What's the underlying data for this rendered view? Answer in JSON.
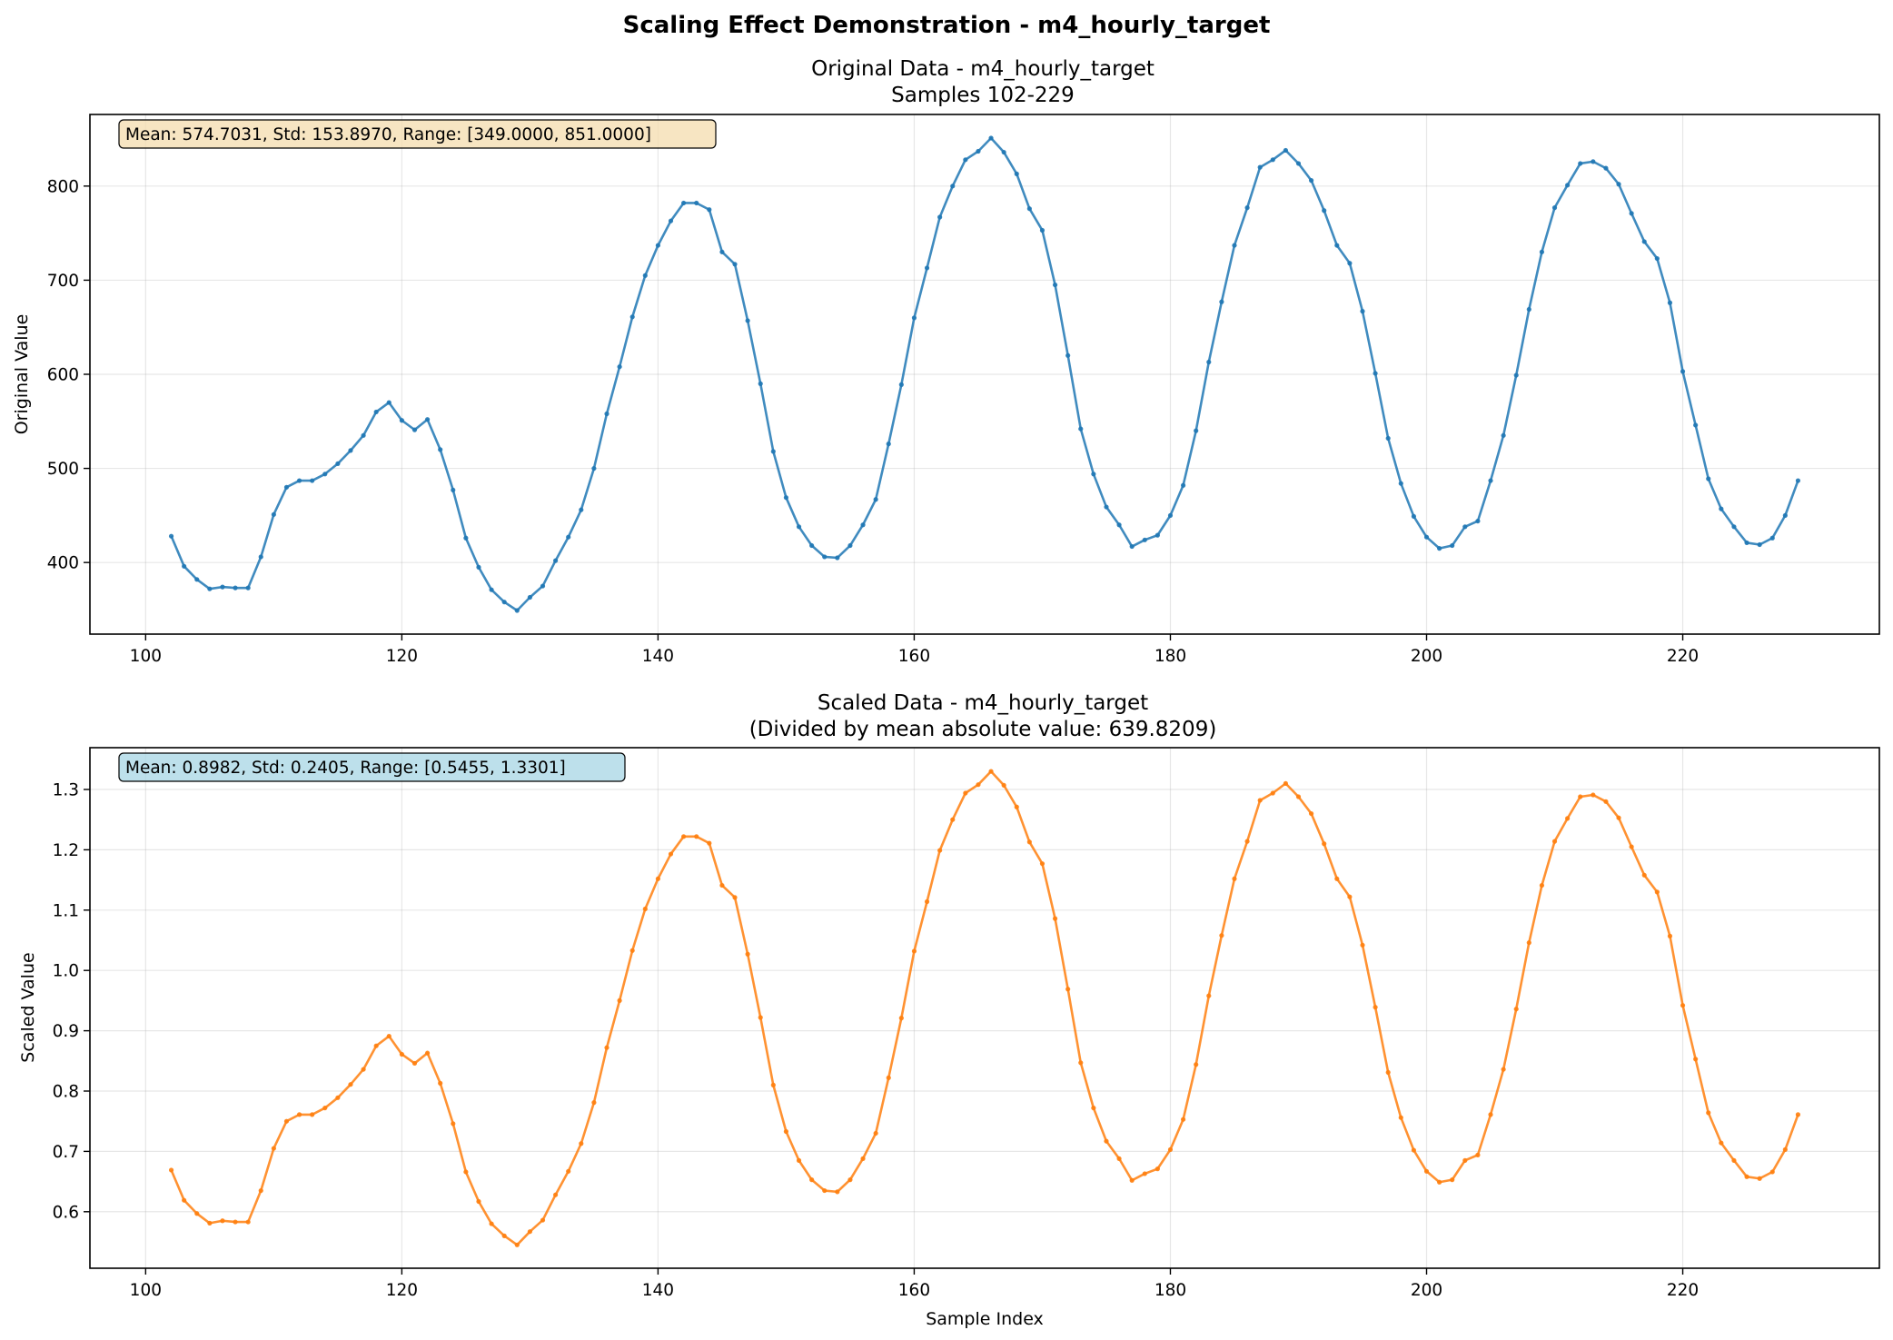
{
  "figure": {
    "suptitle": "Scaling Effect Demonstration - m4_hourly_target"
  },
  "chart_data": [
    {
      "type": "line",
      "title_line1": "Original Data - m4_hourly_target",
      "title_line2": "Samples 102-229",
      "xlabel": "",
      "ylabel": "Original Value",
      "xlim": [
        95.65,
        235.35
      ],
      "ylim": [
        323.9,
        876.1
      ],
      "xticks": [
        100,
        120,
        140,
        160,
        180,
        200,
        220
      ],
      "yticks": [
        400,
        500,
        600,
        700,
        800
      ],
      "grid": true,
      "color": "#1f77b4",
      "stats_text": "Mean: 574.7031, Std: 153.8970, Range: [349.0000, 851.0000]",
      "stats_box_color": "#f5deb3",
      "x_start": 102,
      "values": [
        428,
        396,
        382,
        372,
        374,
        373,
        373,
        406,
        451,
        480,
        487,
        487,
        494,
        505,
        519,
        535,
        560,
        570,
        551,
        541,
        552,
        520,
        477,
        426,
        395,
        371,
        358,
        349,
        363,
        375,
        402,
        427,
        456,
        500,
        558,
        608,
        661,
        705,
        737,
        763,
        782,
        782,
        775,
        730,
        717,
        657,
        590,
        518,
        469,
        438,
        418,
        406,
        405,
        418,
        440,
        467,
        526,
        589,
        660,
        713,
        767,
        800,
        828,
        837,
        851,
        836,
        813,
        776,
        753,
        695,
        620,
        542,
        494,
        459,
        440,
        417,
        424,
        429,
        450,
        482,
        540,
        613,
        677,
        737,
        777,
        820,
        828,
        838,
        824,
        806,
        774,
        737,
        718,
        667,
        601,
        532,
        484,
        449,
        427,
        415,
        418,
        438,
        444,
        487,
        535,
        599,
        669,
        730,
        777,
        801,
        824,
        826,
        819,
        802,
        771,
        741,
        723,
        676,
        603,
        546,
        489,
        457,
        438,
        421,
        419,
        426,
        450,
        487
      ]
    },
    {
      "type": "line",
      "title_line1": "Scaled Data - m4_hourly_target",
      "title_line2": "(Divided by mean absolute value: 639.8209)",
      "xlabel": "Sample Index",
      "ylabel": "Scaled Value",
      "xlim": [
        95.65,
        235.35
      ],
      "ylim": [
        0.5063,
        1.3693
      ],
      "xticks": [
        100,
        120,
        140,
        160,
        180,
        200,
        220
      ],
      "yticks": [
        0.6,
        0.7,
        0.8,
        0.9,
        1.0,
        1.1,
        1.2,
        1.3
      ],
      "ytick_labels": [
        "0.6",
        "0.7",
        "0.8",
        "0.9",
        "1.0",
        "1.1",
        "1.2",
        "1.3"
      ],
      "grid": true,
      "color": "#ff7f0e",
      "stats_text": "Mean: 0.8982, Std: 0.2405, Range: [0.5455, 1.3301]",
      "stats_box_color": "#add8e6",
      "x_start": 102,
      "values": [
        0.669,
        0.619,
        0.597,
        0.581,
        0.585,
        0.583,
        0.583,
        0.635,
        0.705,
        0.75,
        0.761,
        0.761,
        0.772,
        0.789,
        0.811,
        0.836,
        0.875,
        0.891,
        0.861,
        0.846,
        0.863,
        0.813,
        0.746,
        0.666,
        0.617,
        0.58,
        0.56,
        0.545,
        0.567,
        0.586,
        0.628,
        0.667,
        0.713,
        0.781,
        0.872,
        0.95,
        1.033,
        1.102,
        1.152,
        1.193,
        1.222,
        1.222,
        1.211,
        1.141,
        1.121,
        1.027,
        0.922,
        0.81,
        0.733,
        0.685,
        0.653,
        0.635,
        0.633,
        0.653,
        0.688,
        0.73,
        0.822,
        0.921,
        1.032,
        1.114,
        1.199,
        1.25,
        1.294,
        1.308,
        1.33,
        1.307,
        1.271,
        1.213,
        1.177,
        1.086,
        0.969,
        0.847,
        0.772,
        0.717,
        0.688,
        0.652,
        0.663,
        0.671,
        0.703,
        0.753,
        0.844,
        0.958,
        1.058,
        1.152,
        1.214,
        1.282,
        1.294,
        1.31,
        1.288,
        1.26,
        1.21,
        1.152,
        1.122,
        1.042,
        0.939,
        0.831,
        0.756,
        0.702,
        0.667,
        0.649,
        0.653,
        0.685,
        0.694,
        0.761,
        0.836,
        0.936,
        1.046,
        1.141,
        1.214,
        1.252,
        1.288,
        1.291,
        1.28,
        1.253,
        1.205,
        1.158,
        1.13,
        1.057,
        0.942,
        0.853,
        0.764,
        0.714,
        0.685,
        0.658,
        0.655,
        0.666,
        0.703,
        0.761
      ]
    }
  ]
}
